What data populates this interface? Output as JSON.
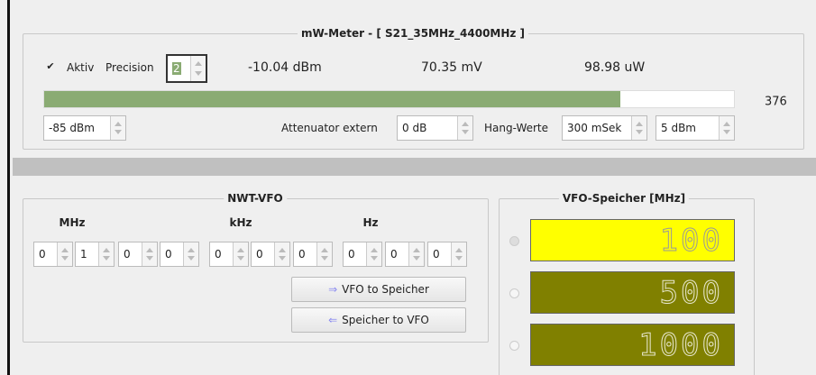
{
  "meter": {
    "title": "mW-Meter - [ S21_35MHz_4400MHz ]",
    "aktiv": "Aktiv",
    "precision_label": "Precision",
    "precision": "2",
    "dbm": "-10.04 dBm",
    "mv": "70.35 mV",
    "uw": "98.98 uW",
    "bar_value": "376",
    "min_level": "-85 dBm",
    "attenuator_label": "Attenuator extern",
    "attenuator": "0 dB",
    "hang_label": "Hang-Werte",
    "hang_time": "300 mSek",
    "hang_level": "5 dBm"
  },
  "vfo": {
    "title": "NWT-VFO",
    "units": [
      "MHz",
      "kHz",
      "Hz"
    ],
    "digits": [
      [
        "0",
        "1",
        "0",
        "0"
      ],
      [
        "0",
        "0",
        "0"
      ],
      [
        "0",
        "0",
        "0"
      ]
    ],
    "buttons": [
      "VFO to Speicher",
      "Speicher to VFO"
    ]
  },
  "memory": {
    "title": "VFO-Speicher [MHz]",
    "values": [
      "100",
      "500",
      "1000"
    ]
  }
}
